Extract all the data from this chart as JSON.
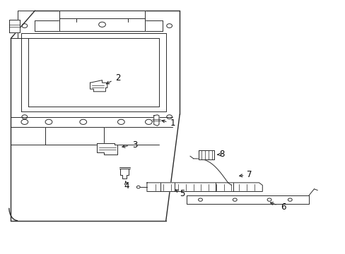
{
  "background_color": "#ffffff",
  "line_color": "#2a2a2a",
  "text_color": "#000000",
  "fig_width": 4.89,
  "fig_height": 3.6,
  "dpi": 100,
  "lw_main": 1.0,
  "lw_thin": 0.7,
  "lw_detail": 0.5,
  "labels": {
    "1": [
      0.495,
      0.515,
      0.45,
      0.515
    ],
    "2": [
      0.34,
      0.7,
      0.34,
      0.66
    ],
    "3": [
      0.39,
      0.43,
      0.345,
      0.43
    ],
    "4": [
      0.36,
      0.27,
      0.36,
      0.31
    ],
    "5": [
      0.53,
      0.235,
      0.53,
      0.255
    ],
    "6": [
      0.82,
      0.18,
      0.775,
      0.2
    ],
    "7": [
      0.72,
      0.31,
      0.68,
      0.33
    ],
    "8": [
      0.64,
      0.39,
      0.6,
      0.39
    ]
  }
}
